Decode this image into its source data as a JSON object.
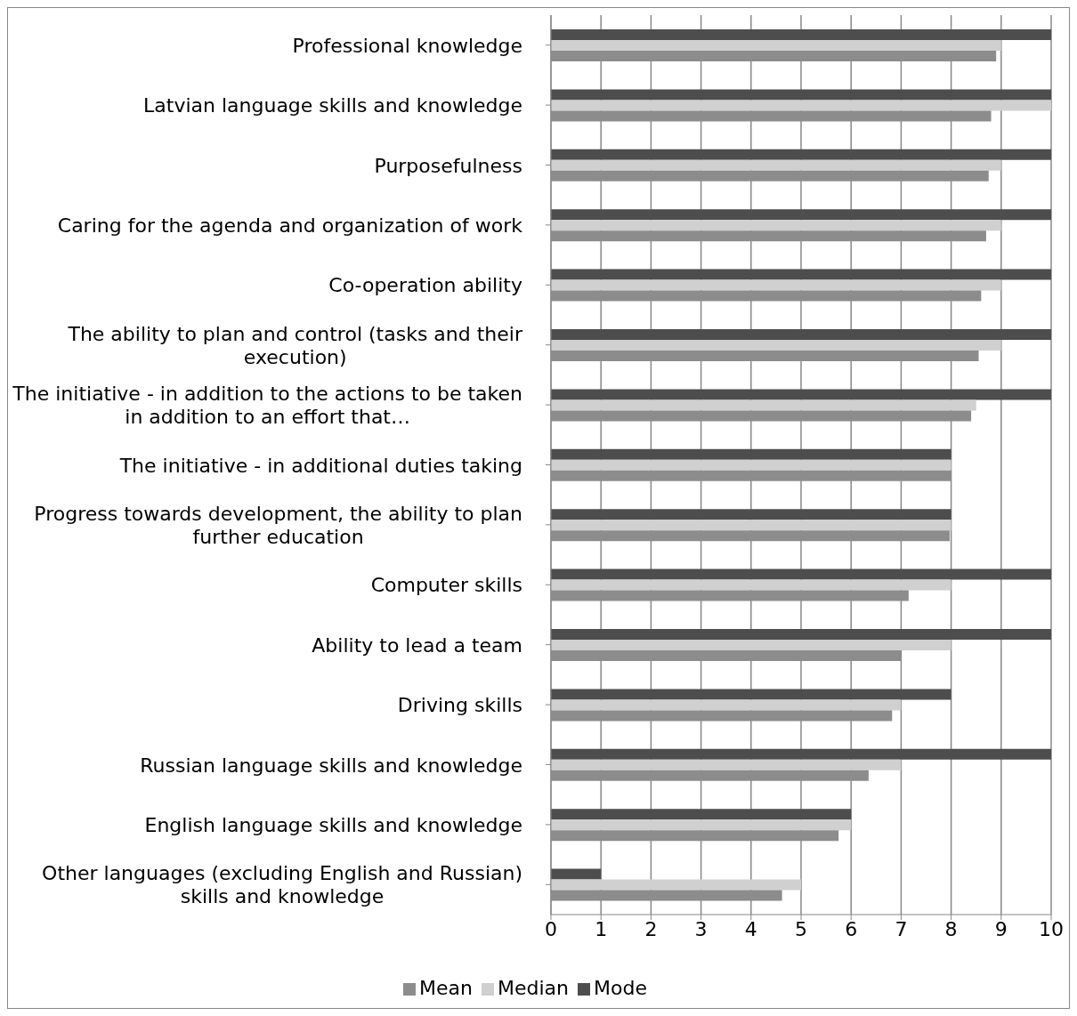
{
  "chart_data": {
    "type": "bar",
    "orientation": "horizontal",
    "categories": [
      "Professional knowledge",
      "Latvian language skills and knowledge",
      "Purposefulness",
      "Caring for the agenda and organization of work",
      "Co-operation ability",
      "The ability to plan and control (tasks and their execution)",
      "The initiative - in addition to the actions to be taken in addition to an effort that…",
      "The initiative - in additional duties taking",
      "Progress towards development, the ability to plan further education",
      "Computer skills",
      "Ability to lead a team",
      "Driving skills",
      "Russian language skills and knowledge",
      "English language skills and knowledge",
      "Other languages (excluding English and Russian) skills and knowledge"
    ],
    "series": [
      {
        "name": "Mode",
        "color": "#4d4d4d",
        "values": [
          10,
          10,
          10,
          10,
          10,
          10,
          10,
          8,
          8,
          10,
          10,
          8,
          10,
          6,
          1
        ]
      },
      {
        "name": "Median",
        "color": "#d0d0d0",
        "values": [
          9,
          10,
          9,
          9,
          9,
          9,
          8.5,
          8,
          8,
          8,
          8,
          7,
          7,
          6,
          5
        ]
      },
      {
        "name": "Mean",
        "color": "#8c8c8c",
        "values": [
          8.9,
          8.8,
          8.75,
          8.7,
          8.6,
          8.55,
          8.4,
          8,
          7.97,
          7.15,
          7,
          6.82,
          6.35,
          5.75,
          4.62
        ]
      }
    ],
    "xlim": [
      0,
      10
    ],
    "xticks": [
      0,
      1,
      2,
      3,
      4,
      5,
      6,
      7,
      8,
      9,
      10
    ],
    "grid": "x",
    "legend": "bottom"
  }
}
